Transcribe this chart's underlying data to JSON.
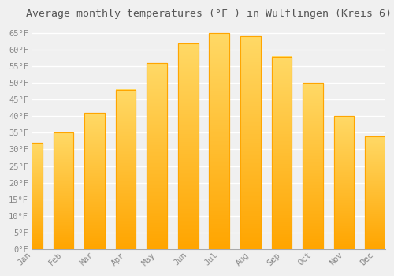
{
  "title": "Average monthly temperatures (°F ) in Wülflingen (Kreis 6)",
  "months": [
    "Jan",
    "Feb",
    "Mar",
    "Apr",
    "May",
    "Jun",
    "Jul",
    "Aug",
    "Sep",
    "Oct",
    "Nov",
    "Dec"
  ],
  "values": [
    32,
    35,
    41,
    48,
    56,
    62,
    65,
    64,
    58,
    50,
    40,
    34
  ],
  "bar_color_top": "#FFC200",
  "bar_color_bottom": "#FFB300",
  "bar_face_color": "#FFBB00",
  "bar_edge_color": "#FFA500",
  "background_color": "#F0F0F0",
  "plot_bg_color": "#F0F0F0",
  "grid_color": "#FFFFFF",
  "text_color": "#888888",
  "title_color": "#555555",
  "ylim": [
    0,
    68
  ],
  "yticks": [
    0,
    5,
    10,
    15,
    20,
    25,
    30,
    35,
    40,
    45,
    50,
    55,
    60,
    65
  ],
  "title_fontsize": 9.5,
  "tick_fontsize": 7.5,
  "bar_width": 0.65
}
